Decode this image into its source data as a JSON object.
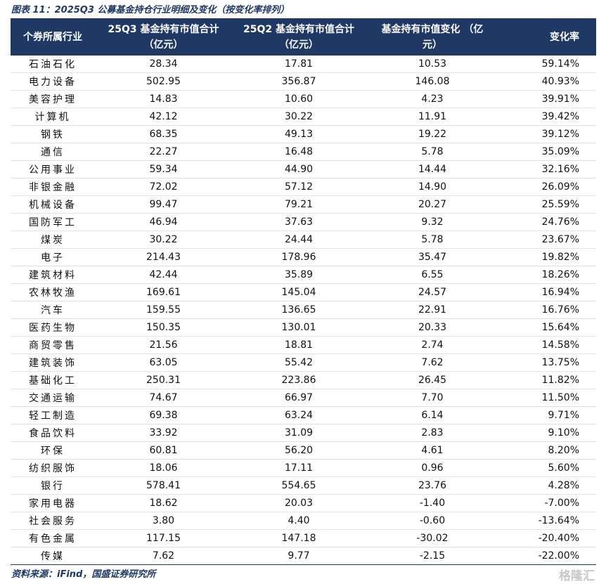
{
  "title": "图表 11：2025Q3 公募基金持仓行业明细及变化（按变化率排列）",
  "table": {
    "header": [
      [
        "个券所属行业"
      ],
      [
        "25Q3 基金持有市值合计",
        "（亿元）"
      ],
      [
        "25Q2 基金持有市值合计",
        "（亿元）"
      ],
      [
        "基金持有市值变化 （亿",
        "元）"
      ],
      [
        "变化率"
      ]
    ],
    "rows": [
      [
        "石油石化",
        "28.34",
        "17.81",
        "10.53",
        "59.14%"
      ],
      [
        "电力设备",
        "502.95",
        "356.87",
        "146.08",
        "40.93%"
      ],
      [
        "美容护理",
        "14.83",
        "10.60",
        "4.23",
        "39.91%"
      ],
      [
        "计算机",
        "42.12",
        "30.22",
        "11.91",
        "39.42%"
      ],
      [
        "钢铁",
        "68.35",
        "49.13",
        "19.22",
        "39.12%"
      ],
      [
        "通信",
        "22.27",
        "16.48",
        "5.78",
        "35.09%"
      ],
      [
        "公用事业",
        "59.34",
        "44.90",
        "14.44",
        "32.16%"
      ],
      [
        "非银金融",
        "72.02",
        "57.12",
        "14.90",
        "26.09%"
      ],
      [
        "机械设备",
        "99.47",
        "79.21",
        "20.27",
        "25.59%"
      ],
      [
        "国防军工",
        "46.94",
        "37.63",
        "9.32",
        "24.76%"
      ],
      [
        "煤炭",
        "30.22",
        "24.44",
        "5.78",
        "23.67%"
      ],
      [
        "电子",
        "214.43",
        "178.96",
        "35.47",
        "19.82%"
      ],
      [
        "建筑材料",
        "42.44",
        "35.89",
        "6.55",
        "18.26%"
      ],
      [
        "农林牧渔",
        "169.61",
        "145.04",
        "24.57",
        "16.94%"
      ],
      [
        "汽车",
        "159.55",
        "136.65",
        "22.91",
        "16.76%"
      ],
      [
        "医药生物",
        "150.35",
        "130.01",
        "20.33",
        "15.64%"
      ],
      [
        "商贸零售",
        "21.56",
        "18.81",
        "2.74",
        "14.58%"
      ],
      [
        "建筑装饰",
        "63.05",
        "55.42",
        "7.62",
        "13.75%"
      ],
      [
        "基础化工",
        "250.31",
        "223.86",
        "26.45",
        "11.82%"
      ],
      [
        "交通运输",
        "74.67",
        "66.97",
        "7.70",
        "11.50%"
      ],
      [
        "轻工制造",
        "69.38",
        "63.24",
        "6.14",
        "9.71%"
      ],
      [
        "食品饮料",
        "33.92",
        "31.09",
        "2.83",
        "9.10%"
      ],
      [
        "环保",
        "60.81",
        "56.20",
        "4.61",
        "8.20%"
      ],
      [
        "纺织服饰",
        "18.06",
        "17.11",
        "0.96",
        "5.60%"
      ],
      [
        "银行",
        "578.41",
        "554.65",
        "23.76",
        "4.28%"
      ],
      [
        "家用电器",
        "18.62",
        "20.03",
        "-1.40",
        "-7.00%"
      ],
      [
        "社会服务",
        "3.80",
        "4.40",
        "-0.60",
        "-13.64%"
      ],
      [
        "有色金属",
        "117.15",
        "147.18",
        "-30.02",
        "-20.40%"
      ],
      [
        "传媒",
        "7.62",
        "9.77",
        "-2.15",
        "-22.00%"
      ]
    ]
  },
  "source": "资料来源：iFind，国盛证券研究所",
  "watermark": "格隆汇"
}
